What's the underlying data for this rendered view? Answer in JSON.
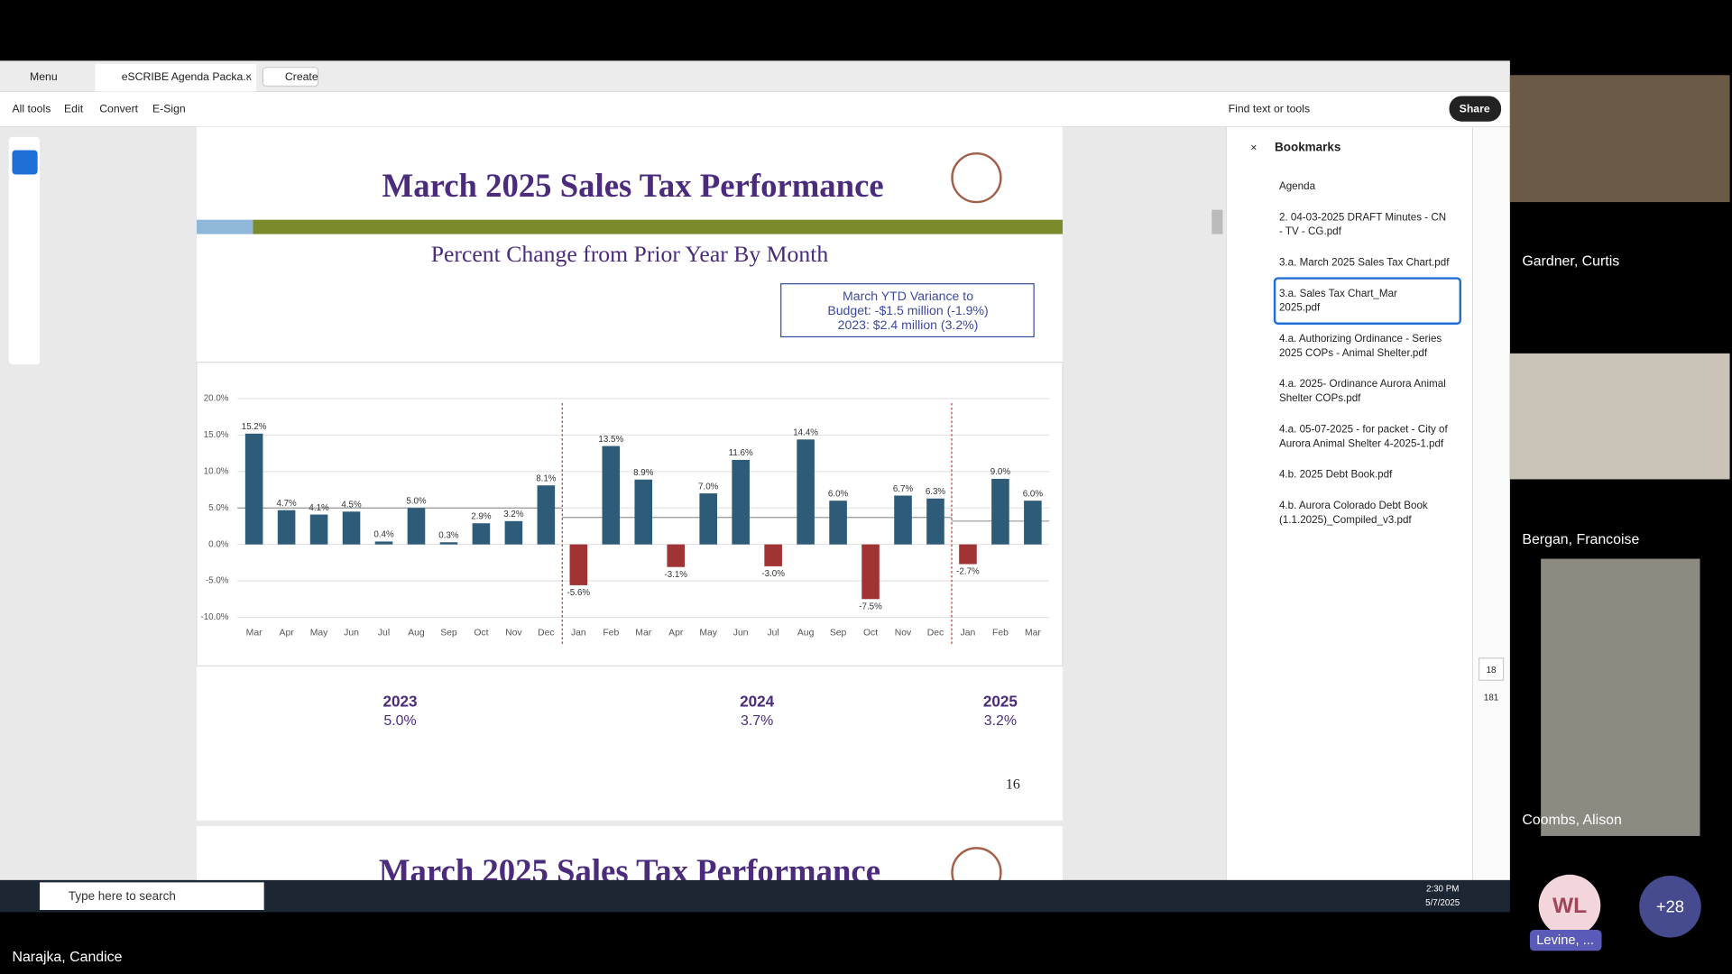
{
  "app": {
    "menu": "Menu",
    "tab": "eSCRIBE Agenda Packa...",
    "create": "Create",
    "toolbar": [
      "All tools",
      "Edit",
      "Convert",
      "E-Sign"
    ],
    "find": "Find text or tools",
    "share": "Share"
  },
  "document": {
    "title": "March 2025 Sales Tax Performance",
    "subtitle": "Percent Change from Prior Year By Month",
    "callout": [
      "March YTD Variance to",
      "Budget: -$1.5 million (-1.9%)",
      "2023: $2.4 million (3.2%)"
    ],
    "page_number": "16",
    "next_title": "March 2025 Sales Tax Performance"
  },
  "chart_data": {
    "type": "bar",
    "categories": [
      "Mar",
      "Apr",
      "May",
      "Jun",
      "Jul",
      "Aug",
      "Sep",
      "Oct",
      "Nov",
      "Dec",
      "Jan",
      "Feb",
      "Mar",
      "Apr",
      "May",
      "Jun",
      "Jul",
      "Aug",
      "Sep",
      "Oct",
      "Nov",
      "Dec",
      "Jan",
      "Feb",
      "Mar"
    ],
    "values": [
      15.2,
      4.7,
      4.1,
      4.5,
      0.4,
      5.0,
      0.3,
      2.9,
      3.2,
      8.1,
      -5.6,
      13.5,
      8.9,
      -3.1,
      7.0,
      11.6,
      -3.0,
      14.4,
      6.0,
      -7.5,
      6.7,
      6.3,
      -2.7,
      9.0,
      6.0
    ],
    "value_labels": [
      "15.2%",
      "4.7%",
      "4.1%",
      "4.5%",
      "0.4%",
      "5.0%",
      "0.3%",
      "2.9%",
      "3.2%",
      "8.1%",
      "-5.6%",
      "13.5%",
      "8.9%",
      "-3.1%",
      "7.0%",
      "11.6%",
      "-3.0%",
      "14.4%",
      "6.0%",
      "-7.5%",
      "6.7%",
      "6.3%",
      "-2.7%",
      "9.0%",
      "6.0%"
    ],
    "positive_color": "#2d5b78",
    "negative_color": "#a03434",
    "ylim": [
      -10,
      20
    ],
    "yticks": [
      {
        "value": -10,
        "label": "-10.0%"
      },
      {
        "value": -5,
        "label": "-5.0%"
      },
      {
        "value": 0,
        "label": "0.0%"
      },
      {
        "value": 5,
        "label": "5.0%"
      },
      {
        "value": 10,
        "label": "10.0%"
      },
      {
        "value": 15,
        "label": "15.0%"
      },
      {
        "value": 20,
        "label": "20.0%"
      }
    ],
    "grid": true,
    "groups": [
      {
        "year": "2023",
        "average": 5.0,
        "average_label": "5.0%"
      },
      {
        "year": "2024",
        "average": 3.7,
        "average_label": "3.7%"
      },
      {
        "year": "2025",
        "average": 3.2,
        "average_label": "3.2%"
      }
    ]
  },
  "bookmarks": {
    "title": "Bookmarks",
    "selected": 3,
    "items": [
      [
        "Agenda"
      ],
      [
        "2. 04-03-2025 DRAFT Minutes - CN",
        "- TV - CG.pdf"
      ],
      [
        "3.a. March 2025 Sales Tax Chart.pdf"
      ],
      [
        "3.a. Sales Tax Chart_Mar",
        "2025.pdf"
      ],
      [
        "4.a. Authorizing Ordinance - Series",
        "2025 COPs - Animal Shelter.pdf"
      ],
      [
        "4.a. 2025- Ordinance Aurora Animal",
        "Shelter COPs.pdf"
      ],
      [
        "4.a. 05-07-2025 - for packet - City of",
        "Aurora Animal Shelter 4-2025-1.pdf"
      ],
      [
        "4.b. 2025 Debt Book.pdf"
      ],
      [
        "4.b. Aurora Colorado Debt Book",
        "(1.1.2025)_Compiled_v3.pdf"
      ]
    ]
  },
  "sidebar": {
    "page": "18",
    "total": "181"
  },
  "participants": [
    "Gardner, Curtis",
    "Bergan, Francoise",
    "Coombs, Alison"
  ],
  "self_name": "Narajka, Candice",
  "avatar": "WL",
  "avatar_name": "Levine, ...",
  "more": "+28",
  "taskbar": {
    "search": "Type here to search",
    "time": "2:30 PM",
    "date": "5/7/2025"
  }
}
